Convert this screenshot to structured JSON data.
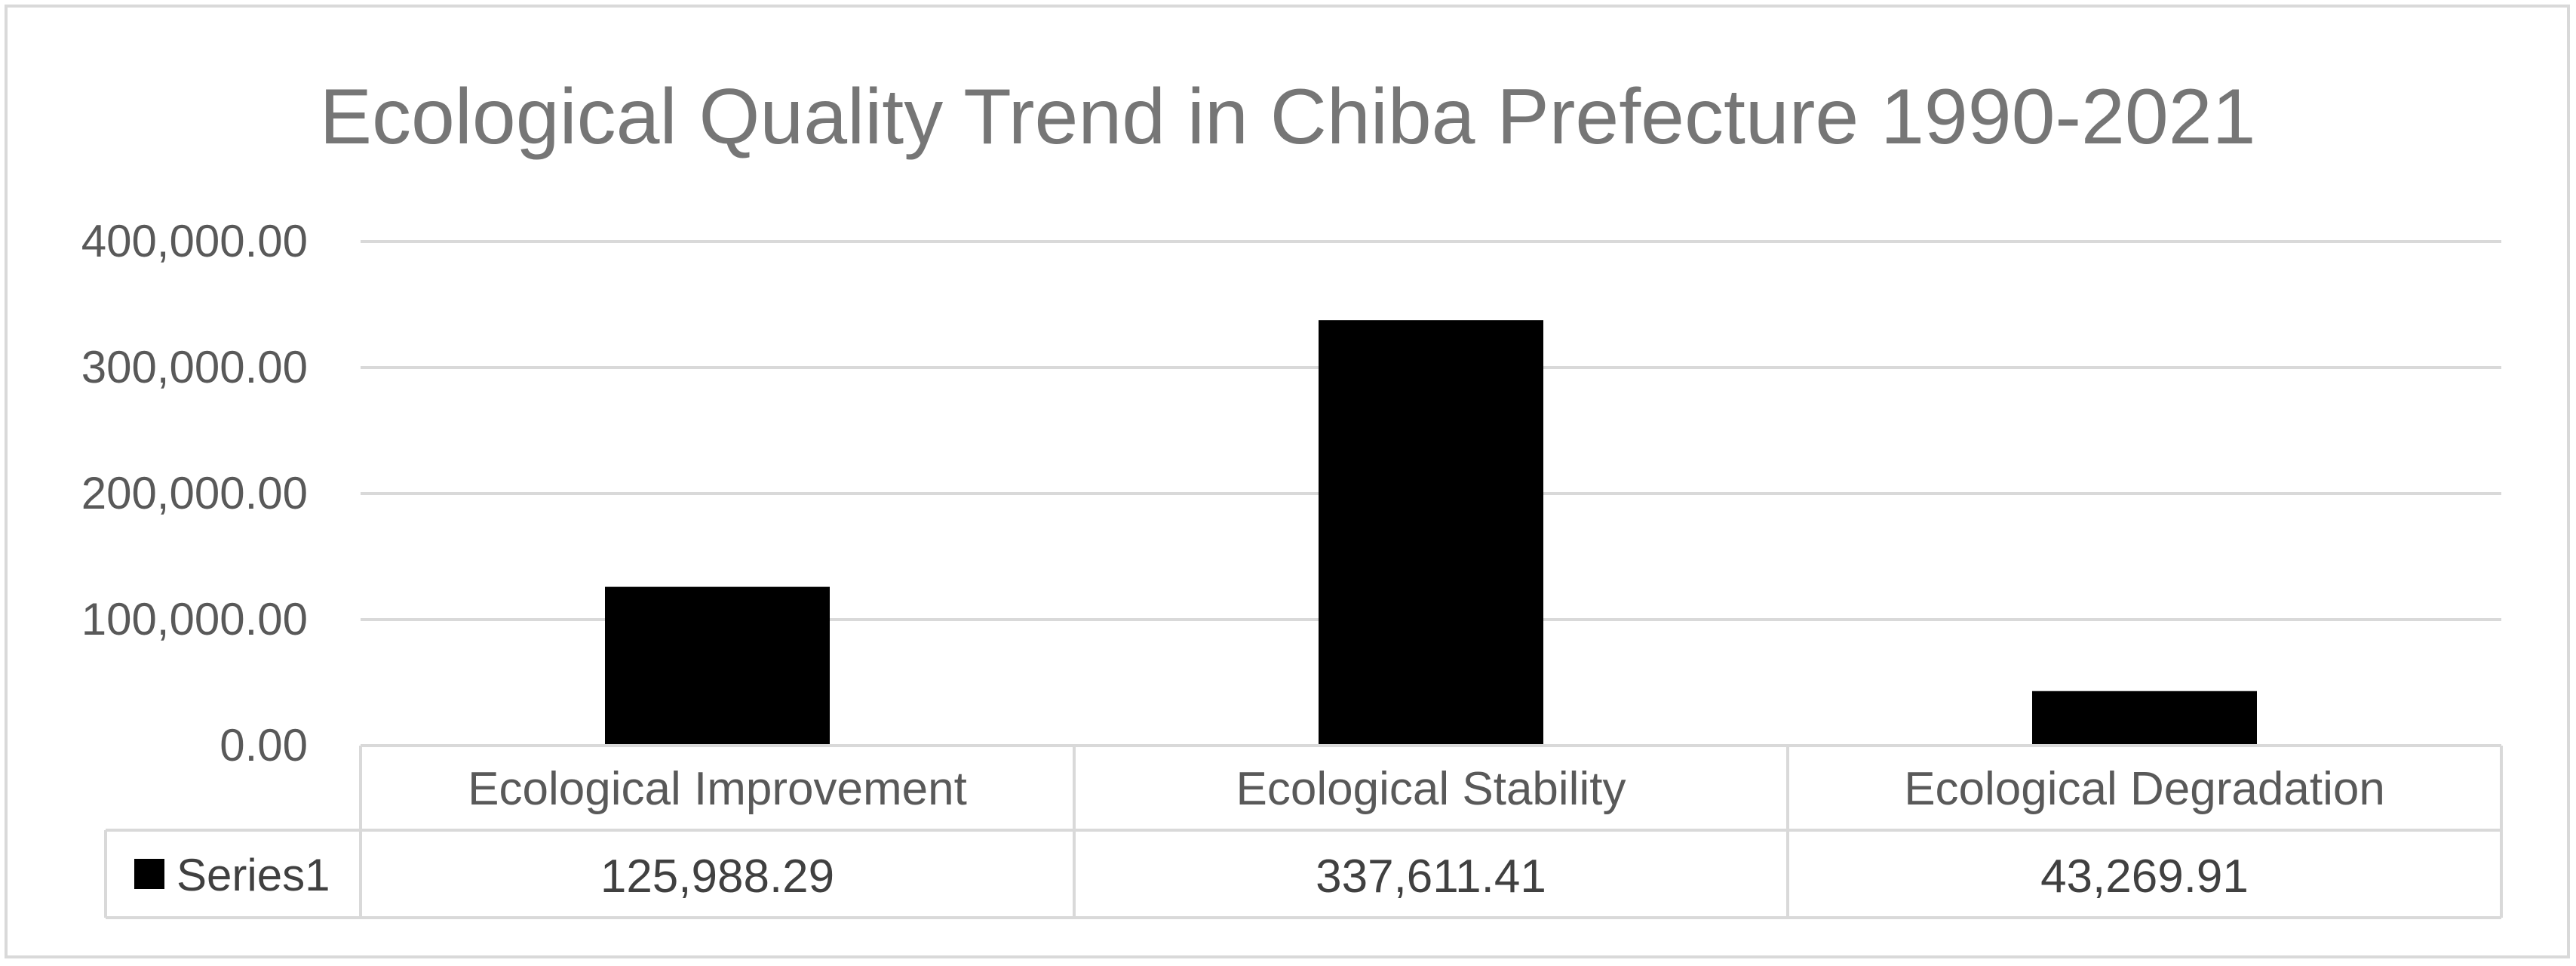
{
  "chart_data": {
    "type": "bar",
    "title": "Ecological Quality Trend in Chiba Prefecture 1990-2021",
    "categories": [
      "Ecological Improvement",
      "Ecological Stability",
      "Ecological Degradation"
    ],
    "series": [
      {
        "name": "Series1",
        "values": [
          125988.29,
          337611.41,
          43269.91
        ],
        "value_labels": [
          "125,988.29",
          "337,611.41",
          "43,269.91"
        ],
        "color": "#000000"
      }
    ],
    "ylim": [
      0,
      400000
    ],
    "yticks": [
      0,
      100000,
      200000,
      300000,
      400000
    ],
    "ytick_labels": [
      "0.00",
      "100,000.00",
      "200,000.00",
      "300,000.00",
      "400,000.00"
    ],
    "grid": true,
    "legend": "data-table",
    "xlabel": "",
    "ylabel": ""
  }
}
